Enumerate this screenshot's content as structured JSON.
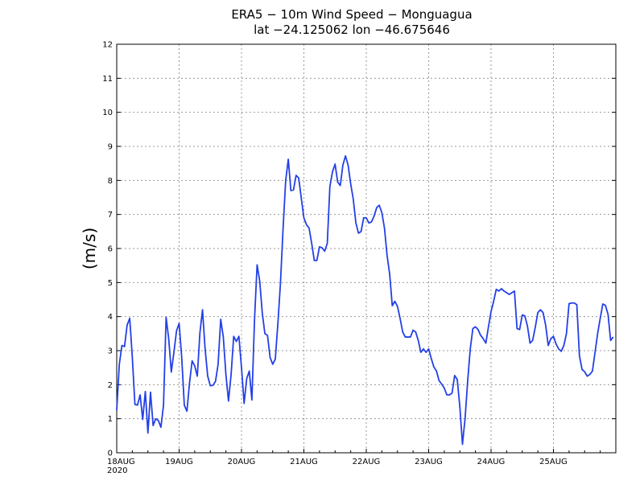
{
  "chart_data": {
    "type": "line",
    "title": "ERA5 − 10m Wind Speed − Monguagua",
    "subtitle": "lat −24.125062 lon −46.675646",
    "ylabel": "(m/s)",
    "xlabel": "",
    "ylim": [
      0,
      12
    ],
    "yticks": [
      "0",
      "1",
      "2",
      "3",
      "4",
      "5",
      "6",
      "7",
      "8",
      "9",
      "10",
      "11",
      "12"
    ],
    "xlim": [
      0,
      192
    ],
    "xticks": [
      {
        "label": "18AUG",
        "sub": "2020",
        "x": 0
      },
      {
        "label": "19AUG",
        "x": 24
      },
      {
        "label": "20AUG",
        "x": 48
      },
      {
        "label": "21AUG",
        "x": 72
      },
      {
        "label": "22AUG",
        "x": 96
      },
      {
        "label": "23AUG",
        "x": 120
      },
      {
        "label": "24AUG",
        "x": 144
      },
      {
        "label": "25AUG",
        "x": 168
      }
    ],
    "grid": true,
    "line_color": "#2440e6",
    "series": [
      {
        "name": "10m Wind Speed",
        "x_step_hours": 1,
        "values": [
          1.25,
          2.6,
          3.15,
          3.12,
          3.75,
          3.95,
          2.8,
          1.42,
          1.4,
          1.7,
          0.98,
          1.8,
          0.58,
          1.78,
          0.8,
          1.0,
          0.95,
          0.75,
          1.4,
          3.98,
          3.35,
          2.37,
          2.95,
          3.58,
          3.8,
          2.8,
          1.4,
          1.22,
          2.05,
          2.7,
          2.55,
          2.25,
          3.52,
          4.2,
          3.05,
          2.25,
          1.97,
          1.98,
          2.1,
          2.6,
          3.92,
          3.4,
          2.3,
          1.52,
          2.3,
          3.42,
          3.27,
          3.42,
          2.5,
          1.45,
          2.18,
          2.4,
          1.55,
          3.9,
          5.52,
          5.05,
          4.1,
          3.5,
          3.45,
          2.8,
          2.6,
          2.75,
          3.8,
          5.0,
          6.6,
          8.0,
          8.62,
          7.7,
          7.72,
          8.15,
          8.07,
          7.48,
          6.9,
          6.7,
          6.6,
          6.15,
          5.65,
          5.65,
          6.05,
          6.02,
          5.92,
          6.15,
          7.82,
          8.25,
          8.48,
          7.95,
          7.85,
          8.45,
          8.72,
          8.45,
          7.9,
          7.45,
          6.75,
          6.45,
          6.5,
          6.9,
          6.9,
          6.75,
          6.78,
          6.95,
          7.2,
          7.27,
          7.05,
          6.6,
          5.8,
          5.25,
          4.32,
          4.45,
          4.3,
          3.95,
          3.55,
          3.4,
          3.4,
          3.4,
          3.6,
          3.55,
          3.3,
          2.95,
          3.05,
          2.95,
          3.05,
          2.77,
          2.52,
          2.4,
          2.12,
          2.02,
          1.9,
          1.7,
          1.7,
          1.75,
          2.27,
          2.15,
          1.35,
          0.25,
          1.0,
          2.1,
          3.05,
          3.65,
          3.7,
          3.62,
          3.45,
          3.35,
          3.22,
          3.7,
          4.15,
          4.45,
          4.8,
          4.75,
          4.82,
          4.75,
          4.7,
          4.65,
          4.7,
          4.75,
          3.65,
          3.62,
          4.05,
          4.02,
          3.72,
          3.22,
          3.3,
          3.68,
          4.12,
          4.2,
          4.12,
          3.75,
          3.15,
          3.35,
          3.42,
          3.2,
          3.05,
          2.98,
          3.15,
          3.5,
          4.38,
          4.4,
          4.4,
          4.35,
          2.85,
          2.45,
          2.38,
          2.25,
          2.3,
          2.4,
          2.95,
          3.5,
          3.95,
          4.37,
          4.33,
          4.07,
          3.3,
          3.4
        ]
      }
    ]
  }
}
